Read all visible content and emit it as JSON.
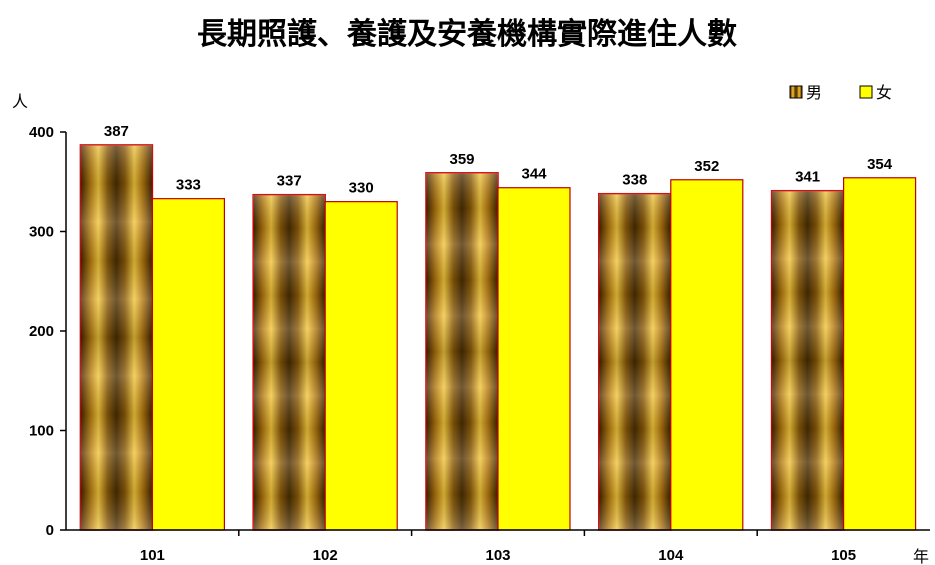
{
  "chart_data": {
    "type": "bar",
    "title": "長期照護、養護及安養機構實際進住人數",
    "ylabel": "人",
    "xlabel": "年",
    "categories": [
      "101",
      "102",
      "103",
      "104",
      "105"
    ],
    "series": [
      {
        "name": "男",
        "values": [
          387,
          337,
          359,
          338,
          341
        ],
        "color": "#c8900a"
      },
      {
        "name": "女",
        "values": [
          333,
          330,
          344,
          352,
          354
        ],
        "color": "#ffff00"
      }
    ],
    "ylim": [
      0,
      400
    ],
    "yticks": [
      0,
      100,
      200,
      300,
      400
    ],
    "grid": false,
    "legend_position": "top-right",
    "colors": {
      "male_edge": "#cc0000",
      "female_edge": "#c00000",
      "female_fill": "#ffff00"
    }
  }
}
